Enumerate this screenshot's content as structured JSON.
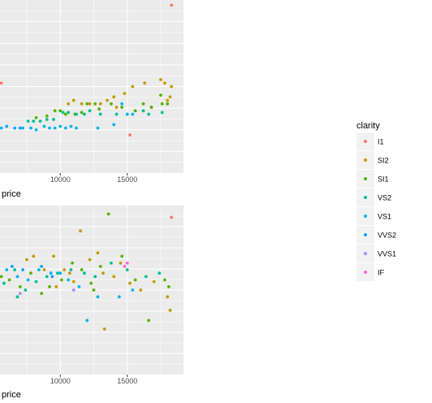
{
  "chart_data": [
    {
      "type": "scatter",
      "xlabel": "price",
      "x_ticks": [
        10000,
        15000
      ],
      "xlim": [
        5500,
        19200
      ],
      "ylim": [
        0,
        1
      ],
      "grid": true,
      "series": [
        {
          "name": "I1",
          "color": "#f8766d",
          "points": [
            [
              5600,
              0.52
            ],
            [
              18300,
              0.97
            ],
            [
              15200,
              0.22
            ]
          ]
        },
        {
          "name": "SI2",
          "color": "#c49a00",
          "points": [
            [
              10600,
              0.4
            ],
            [
              11000,
              0.42
            ],
            [
              11600,
              0.4
            ],
            [
              12200,
              0.4
            ],
            [
              13000,
              0.4
            ],
            [
              13500,
              0.42
            ],
            [
              14000,
              0.44
            ],
            [
              14800,
              0.46
            ],
            [
              15400,
              0.5
            ],
            [
              16300,
              0.52
            ],
            [
              17500,
              0.54
            ],
            [
              17800,
              0.52
            ],
            [
              18000,
              0.42
            ],
            [
              18200,
              0.44
            ],
            [
              18300,
              0.5
            ],
            [
              14200,
              0.38
            ],
            [
              16800,
              0.38
            ]
          ]
        },
        {
          "name": "SI1",
          "color": "#53b400",
          "points": [
            [
              8200,
              0.32
            ],
            [
              9000,
              0.33
            ],
            [
              9600,
              0.36
            ],
            [
              10000,
              0.36
            ],
            [
              10400,
              0.34
            ],
            [
              11100,
              0.34
            ],
            [
              11600,
              0.35
            ],
            [
              12000,
              0.4
            ],
            [
              12600,
              0.4
            ],
            [
              13800,
              0.4
            ],
            [
              14600,
              0.38
            ],
            [
              15600,
              0.36
            ],
            [
              16200,
              0.4
            ],
            [
              16800,
              0.38
            ],
            [
              17600,
              0.4
            ],
            [
              17500,
              0.45
            ],
            [
              18000,
              0.4
            ],
            [
              12900,
              0.37
            ]
          ]
        },
        {
          "name": "VS2",
          "color": "#00c094",
          "points": [
            [
              7600,
              0.3
            ],
            [
              8000,
              0.3
            ],
            [
              8500,
              0.3
            ],
            [
              9000,
              0.31
            ],
            [
              9500,
              0.31
            ],
            [
              10200,
              0.35
            ],
            [
              10600,
              0.35
            ],
            [
              11200,
              0.34
            ],
            [
              11800,
              0.34
            ],
            [
              12200,
              0.36
            ],
            [
              13000,
              0.34
            ],
            [
              14200,
              0.34
            ],
            [
              16200,
              0.36
            ],
            [
              16600,
              0.34
            ],
            [
              17600,
              0.35
            ]
          ]
        },
        {
          "name": "VS1",
          "color": "#00b6eb",
          "points": [
            [
              5600,
              0.26
            ],
            [
              7200,
              0.26
            ],
            [
              7800,
              0.26
            ],
            [
              8200,
              0.25
            ],
            [
              8800,
              0.27
            ],
            [
              9200,
              0.26
            ],
            [
              9600,
              0.26
            ],
            [
              10000,
              0.27
            ],
            [
              10400,
              0.26
            ],
            [
              10800,
              0.27
            ],
            [
              11200,
              0.26
            ],
            [
              12800,
              0.26
            ],
            [
              14000,
              0.28
            ],
            [
              15000,
              0.34
            ],
            [
              15400,
              0.34
            ],
            [
              14600,
              0.4
            ]
          ]
        },
        {
          "name": "VVS2",
          "color": "#06a4ff",
          "points": [
            [
              6000,
              0.27
            ],
            [
              6600,
              0.26
            ],
            [
              7000,
              0.26
            ]
          ]
        }
      ]
    },
    {
      "type": "scatter",
      "xlabel": "price",
      "x_ticks": [
        10000,
        15000
      ],
      "xlim": [
        5500,
        19200
      ],
      "ylim": [
        0,
        1
      ],
      "grid": true,
      "series": [
        {
          "name": "I1",
          "color": "#f8766d",
          "points": [
            [
              18300,
              0.93
            ]
          ]
        },
        {
          "name": "SI2",
          "color": "#c49a00",
          "points": [
            [
              7500,
              0.68
            ],
            [
              8000,
              0.7
            ],
            [
              8800,
              0.62
            ],
            [
              9500,
              0.7
            ],
            [
              10300,
              0.62
            ],
            [
              11000,
              0.55
            ],
            [
              11500,
              0.85
            ],
            [
              12200,
              0.68
            ],
            [
              12800,
              0.72
            ],
            [
              13200,
              0.6
            ],
            [
              14000,
              0.58
            ],
            [
              14500,
              0.66
            ],
            [
              15200,
              0.54
            ],
            [
              16000,
              0.5
            ],
            [
              17000,
              0.55
            ],
            [
              18000,
              0.46
            ],
            [
              18200,
              0.38
            ],
            [
              13300,
              0.27
            ],
            [
              10700,
              0.6
            ],
            [
              9700,
              0.52
            ]
          ]
        },
        {
          "name": "SI1",
          "color": "#53b400",
          "points": [
            [
              5600,
              0.58
            ],
            [
              6200,
              0.56
            ],
            [
              7000,
              0.52
            ],
            [
              7800,
              0.6
            ],
            [
              8600,
              0.48
            ],
            [
              9200,
              0.52
            ],
            [
              10100,
              0.56
            ],
            [
              10900,
              0.66
            ],
            [
              11600,
              0.62
            ],
            [
              12300,
              0.54
            ],
            [
              13000,
              0.64
            ],
            [
              13600,
              0.95
            ],
            [
              14600,
              0.7
            ],
            [
              15600,
              0.56
            ],
            [
              16600,
              0.32
            ],
            [
              17800,
              0.56
            ],
            [
              18100,
              0.52
            ],
            [
              12500,
              0.5
            ]
          ]
        },
        {
          "name": "VS2",
          "color": "#00c094",
          "points": [
            [
              5800,
              0.54
            ],
            [
              6600,
              0.62
            ],
            [
              7400,
              0.5
            ],
            [
              8200,
              0.55
            ],
            [
              9000,
              0.58
            ],
            [
              9800,
              0.6
            ],
            [
              10800,
              0.62
            ],
            [
              11800,
              0.6
            ],
            [
              12600,
              0.58
            ],
            [
              13800,
              0.66
            ],
            [
              15000,
              0.62
            ],
            [
              16400,
              0.58
            ],
            [
              17400,
              0.6
            ],
            [
              6800,
              0.46
            ]
          ]
        },
        {
          "name": "VS1",
          "color": "#00b6eb",
          "points": [
            [
              6000,
              0.62
            ],
            [
              6800,
              0.58
            ],
            [
              7600,
              0.56
            ],
            [
              8400,
              0.62
            ],
            [
              9300,
              0.6
            ],
            [
              10000,
              0.6
            ],
            [
              10600,
              0.56
            ],
            [
              11400,
              0.52
            ],
            [
              12000,
              0.32
            ],
            [
              12800,
              0.46
            ],
            [
              14400,
              0.46
            ],
            [
              15400,
              0.5
            ]
          ]
        },
        {
          "name": "VVS2",
          "color": "#06a4ff",
          "points": [
            [
              6400,
              0.64
            ],
            [
              7200,
              0.62
            ],
            [
              8600,
              0.64
            ],
            [
              9400,
              0.58
            ]
          ]
        },
        {
          "name": "VVS1",
          "color": "#a58aff",
          "points": [
            [
              7000,
              0.48
            ],
            [
              11000,
              0.5
            ]
          ]
        },
        {
          "name": "IF",
          "color": "#fb61d7",
          "points": [
            [
              14800,
              0.64
            ],
            [
              15000,
              0.66
            ]
          ]
        }
      ]
    }
  ],
  "legend": {
    "title": "clarity",
    "entries": [
      {
        "label": "I1",
        "color": "#f8766d"
      },
      {
        "label": "SI2",
        "color": "#c49a00"
      },
      {
        "label": "SI1",
        "color": "#53b400"
      },
      {
        "label": "VS2",
        "color": "#00c094"
      },
      {
        "label": "VS1",
        "color": "#00b6eb"
      },
      {
        "label": "VVS2",
        "color": "#06a4ff"
      },
      {
        "label": "VVS1",
        "color": "#a58aff"
      },
      {
        "label": "IF",
        "color": "#fb61d7"
      }
    ]
  }
}
